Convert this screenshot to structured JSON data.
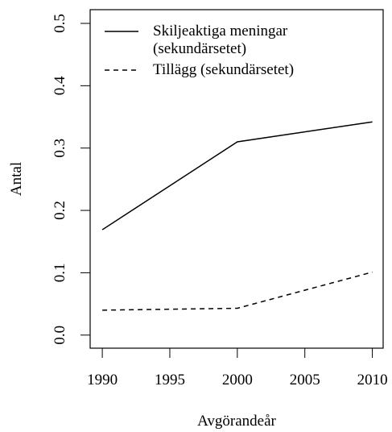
{
  "chart_data": {
    "type": "line",
    "x_label": "Avgörandeår",
    "y_label": "Antal",
    "x": [
      1990,
      2000,
      2010
    ],
    "series": [
      {
        "name": "Skiljeaktiga meningar (sekundärsetet)",
        "color": "#000000",
        "linestyle": "solid",
        "values": [
          0.169,
          0.31,
          0.342
        ]
      },
      {
        "name": "Tillägg (sekundärsetet)",
        "color": "#000000",
        "linestyle": "dashed",
        "values": [
          0.04,
          0.043,
          0.101
        ]
      }
    ],
    "xlim": [
      1989.1,
      2010.8
    ],
    "xticks": [
      1990,
      1995,
      2000,
      2005,
      2010
    ],
    "ylim": [
      -0.021,
      0.522
    ],
    "yticks": [
      {
        "value": 0,
        "label": "0.0"
      },
      0.1,
      0.2,
      0.3,
      0.4,
      0.5
    ],
    "grid": false,
    "legend": "top-left"
  }
}
